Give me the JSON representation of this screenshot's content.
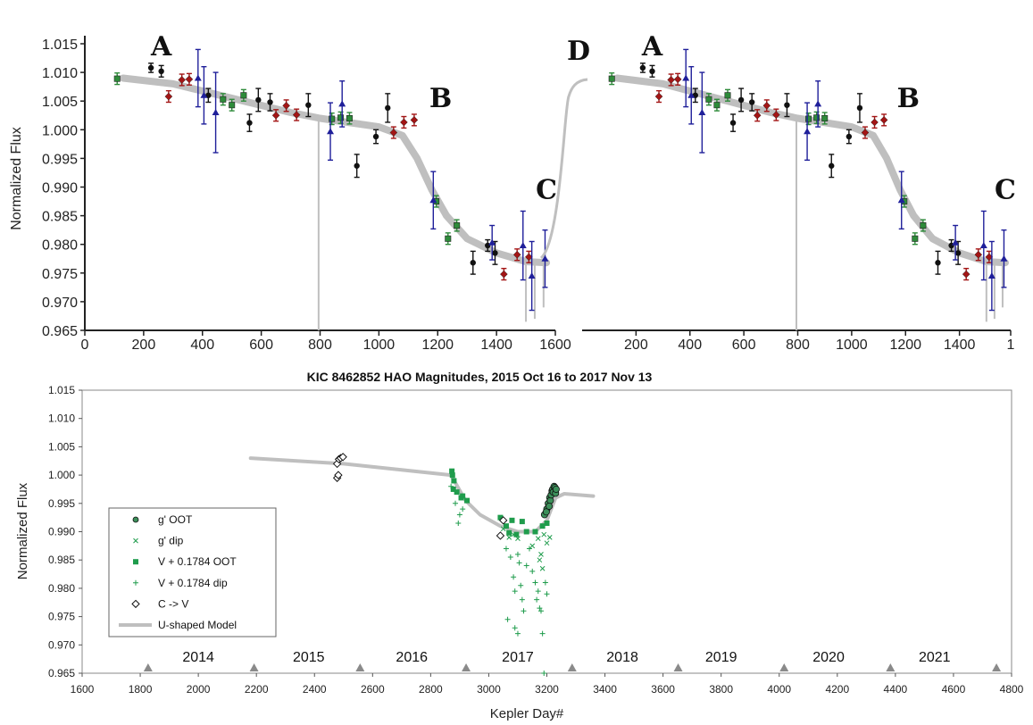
{
  "colors": {
    "model": "#bfbfbf",
    "black": "#111111",
    "red": "#a31515",
    "green": "#2e8b3a",
    "blue": "#1f1f9a",
    "gprime": "#3c8f5a",
    "vgreen": "#1f9c4c",
    "year_marker": "#8a8a8a"
  },
  "chart_data": [
    {
      "type": "scatter",
      "panel": "top-left",
      "title": "",
      "xlabel": "",
      "ylabel": "Normalized Flux",
      "xlim": [
        0,
        1600
      ],
      "ylim": [
        0.965,
        1.017
      ],
      "x_ticks": [
        "0",
        "200",
        "400",
        "600",
        "800",
        "1000",
        "1200",
        "1400",
        "1600"
      ],
      "y_ticks": [
        "0.965",
        "0.970",
        "0.975",
        "0.980",
        "0.985",
        "0.990",
        "0.995",
        "1.000",
        "1.005",
        "1.010",
        "1.015"
      ],
      "annotations": [
        {
          "text": "A",
          "x": 260,
          "y": 1.0145
        },
        {
          "text": "B",
          "x": 1210,
          "y": 1.0055
        },
        {
          "text": "C",
          "x": 1570,
          "y": 0.9895
        },
        {
          "text": "D",
          "x": 1650,
          "y": 1.0115
        }
      ],
      "model": [
        [
          130,
          1.009
        ],
        [
          300,
          1.008
        ],
        [
          500,
          1.0055
        ],
        [
          700,
          1.003
        ],
        [
          800,
          1.002
        ],
        [
          1000,
          1.0005
        ],
        [
          1080,
          0.999
        ],
        [
          1130,
          0.995
        ],
        [
          1180,
          0.9895
        ],
        [
          1230,
          0.985
        ],
        [
          1300,
          0.981
        ],
        [
          1400,
          0.9785
        ],
        [
          1500,
          0.977
        ],
        [
          1570,
          0.9768
        ]
      ],
      "series": [
        {
          "color": "black",
          "marker": "circle",
          "points": [
            [
              225,
              1.0108,
              0.0008
            ],
            [
              260,
              1.0102,
              0.001
            ],
            [
              420,
              1.006,
              0.0012
            ],
            [
              560,
              1.0012,
              0.0015
            ],
            [
              590,
              1.0052,
              0.002
            ],
            [
              630,
              1.0048,
              0.0015
            ],
            [
              760,
              1.0043,
              0.002
            ],
            [
              925,
              0.9937,
              0.002
            ],
            [
              990,
              0.9988,
              0.0012
            ],
            [
              1030,
              1.0038,
              0.0025
            ],
            [
              1320,
              0.9768,
              0.002
            ],
            [
              1370,
              0.9798,
              0.001
            ],
            [
              1395,
              0.9785,
              0.002
            ]
          ]
        },
        {
          "color": "red",
          "marker": "diamond",
          "points": [
            [
              285,
              1.0058,
              0.001
            ],
            [
              330,
              1.0087,
              0.001
            ],
            [
              355,
              1.0088,
              0.001
            ],
            [
              650,
              1.0025,
              0.001
            ],
            [
              685,
              1.0042,
              0.001
            ],
            [
              720,
              1.0026,
              0.001
            ],
            [
              1050,
              0.9995,
              0.001
            ],
            [
              1085,
              1.0013,
              0.001
            ],
            [
              1120,
              1.0017,
              0.001
            ],
            [
              1425,
              0.9748,
              0.001
            ],
            [
              1470,
              0.9782,
              0.001
            ],
            [
              1510,
              0.9778,
              0.001
            ]
          ]
        },
        {
          "color": "green",
          "marker": "square",
          "points": [
            [
              110,
              1.0089,
              0.001
            ],
            [
              470,
              1.0053,
              0.001
            ],
            [
              500,
              1.0043,
              0.001
            ],
            [
              540,
              1.006,
              0.001
            ],
            [
              840,
              1.0019,
              0.001
            ],
            [
              870,
              1.0021,
              0.001
            ],
            [
              900,
              1.002,
              0.001
            ],
            [
              1195,
              0.9875,
              0.001
            ],
            [
              1235,
              0.981,
              0.001
            ],
            [
              1265,
              0.9833,
              0.001
            ]
          ]
        },
        {
          "color": "blue",
          "marker": "triangle",
          "points": [
            [
              385,
              1.009,
              0.005
            ],
            [
              405,
              1.006,
              0.005
            ],
            [
              445,
              1.003,
              0.007
            ],
            [
              835,
              0.9997,
              0.005
            ],
            [
              875,
              1.0045,
              0.004
            ],
            [
              1185,
              0.9877,
              0.005
            ],
            [
              1385,
              0.9803,
              0.003
            ],
            [
              1490,
              0.9798,
              0.006
            ],
            [
              1520,
              0.9745,
              0.006
            ],
            [
              1565,
              0.9775,
              0.005
            ]
          ]
        }
      ]
    },
    {
      "type": "scatter",
      "panel": "top-right",
      "title": "",
      "xlabel": "",
      "ylabel": "",
      "xlim": [
        0,
        1590
      ],
      "ylim": [
        0.965,
        1.017
      ],
      "x_ticks": [
        "200",
        "400",
        "600",
        "800",
        "1000",
        "1200",
        "1400",
        "1"
      ],
      "annotations": [
        {
          "text": "A",
          "x": 260,
          "y": 1.0145
        },
        {
          "text": "B",
          "x": 1210,
          "y": 1.0055
        },
        {
          "text": "C",
          "x": 1570,
          "y": 0.9895
        }
      ]
    },
    {
      "type": "scatter",
      "panel": "bottom",
      "title": "KIC 8462852 HAO Magnitudes, 2015 Oct 16 to 2017 Nov 13",
      "xlabel": "Kepler Day#",
      "ylabel": "Normalized Flux",
      "xlim": [
        1600,
        4800
      ],
      "ylim": [
        0.965,
        1.015
      ],
      "x_ticks": [
        "1600",
        "1800",
        "2000",
        "2200",
        "2400",
        "2600",
        "2800",
        "3000",
        "3200",
        "3400",
        "3600",
        "3800",
        "4000",
        "4200",
        "4400",
        "4600",
        "4800"
      ],
      "y_ticks": [
        "0.965",
        "0.970",
        "0.975",
        "0.980",
        "0.985",
        "0.990",
        "0.995",
        "1.000",
        "1.005",
        "1.010",
        "1.015"
      ],
      "legend": {
        "position": "lower-left",
        "entries": [
          {
            "label": "g' OOT",
            "marker": "circle"
          },
          {
            "label": "g' dip",
            "marker": "x"
          },
          {
            "label": "V + 0.1784 OOT",
            "marker": "square"
          },
          {
            "label": "V + 0.1784 dip",
            "marker": "plus"
          },
          {
            "label": "C -> V",
            "marker": "diamond-open"
          },
          {
            "label": "U-shaped Model",
            "marker": "line"
          }
        ]
      },
      "years": [
        {
          "label": "2014",
          "x": 2000
        },
        {
          "label": "2015",
          "x": 2380
        },
        {
          "label": "2016",
          "x": 2735
        },
        {
          "label": "2017",
          "x": 3100
        },
        {
          "label": "2018",
          "x": 3460
        },
        {
          "label": "2019",
          "x": 3800
        },
        {
          "label": "2020",
          "x": 4170
        },
        {
          "label": "2021",
          "x": 4535
        }
      ],
      "year_markers": [
        1827,
        2192,
        2557,
        2922,
        3287,
        3652,
        4017,
        4383,
        4748
      ],
      "model": [
        [
          2180,
          1.003
        ],
        [
          2500,
          1.002
        ],
        [
          2870,
          1.0
        ],
        [
          2920,
          0.9955
        ],
        [
          2970,
          0.993
        ],
        [
          3040,
          0.991
        ],
        [
          3100,
          0.99
        ],
        [
          3160,
          0.99
        ],
        [
          3200,
          0.992
        ],
        [
          3230,
          0.996
        ],
        [
          3260,
          0.9967
        ],
        [
          3360,
          0.9963
        ]
      ],
      "c_to_v": [
        [
          2478,
          1.002
        ],
        [
          2484,
          1.0028
        ],
        [
          2478,
          0.9995
        ],
        [
          2482,
          1.0
        ],
        [
          2490,
          1.003
        ],
        [
          2498,
          1.0032
        ],
        [
          3050,
          0.992
        ],
        [
          3040,
          0.9893
        ]
      ],
      "g_oot": [
        [
          3192,
          0.993
        ],
        [
          3200,
          0.994
        ],
        [
          3205,
          0.995
        ],
        [
          3210,
          0.996
        ],
        [
          3212,
          0.9955
        ],
        [
          3215,
          0.9965
        ],
        [
          3218,
          0.9972
        ],
        [
          3220,
          0.9975
        ],
        [
          3222,
          0.997
        ],
        [
          3225,
          0.998
        ],
        [
          3228,
          0.9978
        ],
        [
          3230,
          0.9968
        ],
        [
          3232,
          0.9975
        ],
        [
          3198,
          0.9935
        ],
        [
          3208,
          0.9945
        ]
      ],
      "v_oot": [
        [
          2873,
          1.0007
        ],
        [
          2875,
          1.0
        ],
        [
          2880,
          0.999
        ],
        [
          2878,
          0.9975
        ],
        [
          2890,
          0.997
        ],
        [
          2905,
          0.996
        ],
        [
          2910,
          0.9963
        ],
        [
          2925,
          0.9955
        ],
        [
          3040,
          0.9925
        ],
        [
          3060,
          0.991
        ],
        [
          3070,
          0.9898
        ],
        [
          3080,
          0.992
        ],
        [
          3095,
          0.9895
        ],
        [
          3115,
          0.9918
        ],
        [
          3130,
          0.99
        ],
        [
          3160,
          0.99
        ],
        [
          3185,
          0.991
        ],
        [
          3200,
          0.9915
        ]
      ],
      "g_dip": [
        [
          3050,
          0.9905
        ],
        [
          3070,
          0.989
        ],
        [
          3085,
          0.9895
        ],
        [
          3100,
          0.9888
        ],
        [
          3150,
          0.9875
        ],
        [
          3170,
          0.9888
        ],
        [
          3180,
          0.986
        ],
        [
          3190,
          0.9895
        ],
        [
          3200,
          0.988
        ],
        [
          3210,
          0.989
        ],
        [
          3175,
          0.985
        ],
        [
          3185,
          0.9835
        ]
      ],
      "v_dip": [
        [
          2870,
          0.998
        ],
        [
          2885,
          0.995
        ],
        [
          2900,
          0.993
        ],
        [
          2895,
          0.9915
        ],
        [
          2910,
          0.994
        ],
        [
          3060,
          0.987
        ],
        [
          3075,
          0.9855
        ],
        [
          3085,
          0.982
        ],
        [
          3090,
          0.9795
        ],
        [
          3100,
          0.986
        ],
        [
          3105,
          0.9845
        ],
        [
          3110,
          0.9805
        ],
        [
          3115,
          0.978
        ],
        [
          3120,
          0.976
        ],
        [
          3130,
          0.984
        ],
        [
          3140,
          0.987
        ],
        [
          3150,
          0.983
        ],
        [
          3160,
          0.981
        ],
        [
          3165,
          0.978
        ],
        [
          3170,
          0.9795
        ],
        [
          3175,
          0.9765
        ],
        [
          3180,
          0.976
        ],
        [
          3185,
          0.972
        ],
        [
          3195,
          0.981
        ],
        [
          3200,
          0.979
        ],
        [
          3065,
          0.9745
        ],
        [
          3090,
          0.973
        ],
        [
          3100,
          0.972
        ],
        [
          3190,
          0.965
        ]
      ]
    }
  ]
}
